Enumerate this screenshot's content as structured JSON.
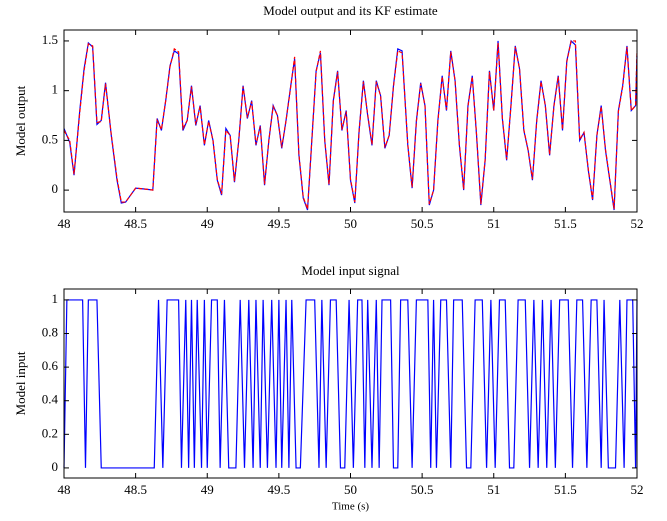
{
  "chart_data": [
    {
      "type": "line",
      "title": "Model output and its KF estimate",
      "y_label": "Model output",
      "x": [
        48,
        48.04,
        48.07,
        48.11,
        48.14,
        48.17,
        48.2,
        48.23,
        48.26,
        48.29,
        48.33,
        48.37,
        48.4,
        48.43,
        48.5,
        48.57,
        48.62,
        48.65,
        48.68,
        48.71,
        48.74,
        48.77,
        48.8,
        48.83,
        48.86,
        48.89,
        48.92,
        48.95,
        48.98,
        49.01,
        49.04,
        49.07,
        49.1,
        49.13,
        49.16,
        49.19,
        49.22,
        49.25,
        49.28,
        49.31,
        49.34,
        49.37,
        49.4,
        49.43,
        49.46,
        49.49,
        49.52,
        49.55,
        49.58,
        49.61,
        49.64,
        49.67,
        49.7,
        49.73,
        49.76,
        49.79,
        49.82,
        49.85,
        49.88,
        49.91,
        49.94,
        49.97,
        50,
        50.03,
        50.06,
        50.09,
        50.12,
        50.15,
        50.18,
        50.21,
        50.24,
        50.27,
        50.3,
        50.33,
        50.36,
        50.4,
        50.43,
        50.46,
        50.49,
        50.52,
        50.55,
        50.58,
        50.61,
        50.64,
        50.67,
        50.7,
        50.73,
        50.76,
        50.79,
        50.82,
        50.85,
        50.88,
        50.91,
        50.94,
        50.97,
        51,
        51.03,
        51.06,
        51.09,
        51.12,
        51.15,
        51.18,
        51.21,
        51.24,
        51.27,
        51.3,
        51.33,
        51.36,
        51.39,
        51.42,
        51.45,
        51.48,
        51.51,
        51.54,
        51.57,
        51.6,
        51.63,
        51.66,
        51.69,
        51.72,
        51.75,
        51.78,
        51.81,
        51.84,
        51.87,
        51.9,
        51.93,
        51.96,
        51.99,
        52
      ],
      "series": [
        {
          "color": "#0000ff",
          "linestyle": "solid",
          "values": [
            0.62,
            0.48,
            0.15,
            0.8,
            1.22,
            1.48,
            1.44,
            0.66,
            0.7,
            1.08,
            0.55,
            0.1,
            -0.13,
            -0.12,
            0.02,
            0.01,
            0,
            0.72,
            0.6,
            0.9,
            1.25,
            1.4,
            1.37,
            0.6,
            0.7,
            1.05,
            0.65,
            0.85,
            0.45,
            0.7,
            0.5,
            0.1,
            -0.05,
            0.62,
            0.55,
            0.08,
            0.5,
            1.05,
            0.72,
            0.9,
            0.45,
            0.65,
            0.05,
            0.5,
            0.85,
            0.75,
            0.42,
            0.7,
            1.02,
            1.32,
            0.35,
            -0.08,
            -0.2,
            0.5,
            1.2,
            1.38,
            0.5,
            0.05,
            0.9,
            1.2,
            0.6,
            0.8,
            0.1,
            -0.13,
            0.6,
            1.1,
            0.75,
            0.45,
            1.1,
            0.95,
            0.42,
            0.55,
            1.05,
            1.42,
            1.4,
            0.45,
            0.02,
            0.7,
            1.08,
            0.85,
            -0.15,
            0,
            0.7,
            1.15,
            0.8,
            1.4,
            1.1,
            0.45,
            0,
            0.85,
            1.15,
            0.55,
            -0.15,
            0.3,
            1.2,
            0.8,
            1.5,
            0.72,
            0.3,
            0.85,
            1.45,
            1.22,
            0.6,
            0.4,
            0.1,
            0.7,
            1.1,
            0.85,
            0.35,
            0.85,
            1.15,
            0.6,
            1.3,
            1.5,
            1.46,
            0.5,
            0.58,
            0.2,
            -0.1,
            0.55,
            0.85,
            0.4,
            0.1,
            -0.2,
            0.8,
            1.05,
            1.45,
            0.8,
            0.85,
            1.35
          ]
        },
        {
          "color": "#ff0000",
          "linestyle": "dashed",
          "values": [
            0.6,
            0.5,
            0.16,
            0.78,
            1.2,
            1.47,
            1.45,
            0.68,
            0.69,
            1.07,
            0.56,
            0.12,
            -0.12,
            -0.12,
            0.02,
            0.01,
            0,
            0.7,
            0.61,
            0.9,
            1.24,
            1.42,
            1.39,
            0.62,
            0.7,
            1.04,
            0.66,
            0.84,
            0.46,
            0.69,
            0.5,
            0.11,
            -0.04,
            0.6,
            0.55,
            0.09,
            0.5,
            1.04,
            0.73,
            0.89,
            0.46,
            0.64,
            0.06,
            0.5,
            0.84,
            0.75,
            0.43,
            0.7,
            1.01,
            1.34,
            0.36,
            -0.07,
            -0.19,
            0.5,
            1.19,
            1.4,
            0.51,
            0.06,
            0.89,
            1.19,
            0.61,
            0.79,
            0.11,
            -0.12,
            0.59,
            1.09,
            0.76,
            0.46,
            1.09,
            0.95,
            0.43,
            0.55,
            1.04,
            1.4,
            1.38,
            0.46,
            0.03,
            0.69,
            1.07,
            0.85,
            -0.14,
            0,
            0.69,
            1.14,
            0.81,
            1.39,
            1.1,
            0.46,
            0.01,
            0.84,
            1.14,
            0.56,
            -0.14,
            0.31,
            1.19,
            0.8,
            1.48,
            0.73,
            0.31,
            0.84,
            1.44,
            1.22,
            0.61,
            0.4,
            0.11,
            0.69,
            1.09,
            0.85,
            0.36,
            0.84,
            1.14,
            0.61,
            1.29,
            1.5,
            1.5,
            0.51,
            0.58,
            0.21,
            -0.09,
            0.55,
            0.84,
            0.41,
            0.11,
            -0.19,
            0.79,
            1.04,
            1.44,
            0.8,
            0.85,
            1.4
          ]
        }
      ],
      "xlim": [
        48,
        52
      ],
      "xticks": [
        48,
        48.5,
        49,
        49.5,
        50,
        50.5,
        51,
        51.5,
        52
      ],
      "ylim": [
        -0.22,
        1.61
      ],
      "yticks": [
        0,
        0.5,
        1,
        1.5
      ],
      "grid": false
    },
    {
      "type": "line",
      "title": "Model input signal",
      "y_label": "Model input",
      "x_label": "Time (s)",
      "x": [
        48,
        48.02,
        48.13,
        48.15,
        48.17,
        48.23,
        48.26,
        48.63,
        48.66,
        48.69,
        48.72,
        48.8,
        48.82,
        48.85,
        48.87,
        48.89,
        48.91,
        48.93,
        48.96,
        48.98,
        49,
        49.03,
        49.07,
        49.09,
        49.12,
        49.15,
        49.2,
        49.23,
        49.26,
        49.29,
        49.32,
        49.34,
        49.37,
        49.39,
        49.42,
        49.45,
        49.48,
        49.5,
        49.52,
        49.55,
        49.57,
        49.59,
        49.62,
        49.65,
        49.69,
        49.75,
        49.78,
        49.8,
        49.83,
        49.86,
        49.9,
        49.93,
        49.96,
        49.99,
        50.02,
        50.05,
        50.08,
        50.1,
        50.12,
        50.15,
        50.18,
        50.2,
        50.22,
        50.28,
        50.3,
        50.33,
        50.35,
        50.4,
        50.43,
        50.46,
        50.54,
        50.56,
        50.58,
        50.6,
        50.63,
        50.67,
        50.7,
        50.72,
        50.78,
        50.81,
        50.84,
        50.87,
        50.92,
        50.95,
        50.98,
        51.01,
        51.04,
        51.08,
        51.11,
        51.14,
        51.17,
        51.22,
        51.25,
        51.28,
        51.31,
        51.34,
        51.37,
        51.4,
        51.43,
        51.46,
        51.52,
        51.55,
        51.58,
        51.62,
        51.65,
        51.68,
        51.72,
        51.75,
        51.77,
        51.8,
        51.85,
        51.88,
        51.91,
        51.93,
        51.97,
        51.99,
        52
      ],
      "series": [
        {
          "color": "#0000ff",
          "linestyle": "solid",
          "values": [
            0,
            1,
            1,
            0,
            1,
            1,
            0,
            0,
            1,
            0,
            1,
            1,
            0,
            1,
            0,
            1,
            0,
            1,
            0,
            1,
            0,
            1,
            1,
            0,
            1,
            0,
            0,
            1,
            0,
            1,
            0,
            1,
            0,
            1,
            0,
            1,
            0,
            1,
            0,
            1,
            0,
            1,
            0,
            0,
            1,
            1,
            0,
            1,
            0,
            1,
            1,
            0,
            0,
            1,
            0,
            1,
            1,
            0,
            1,
            0,
            1,
            0,
            1,
            1,
            0,
            0,
            1,
            1,
            0,
            1,
            1,
            0,
            1,
            0,
            1,
            1,
            0,
            1,
            1,
            0,
            0,
            1,
            1,
            0,
            1,
            0,
            1,
            1,
            0,
            0,
            1,
            1,
            0,
            1,
            0,
            1,
            0,
            1,
            0,
            1,
            1,
            0,
            1,
            1,
            0,
            1,
            1,
            0,
            1,
            0,
            0,
            1,
            0,
            1,
            1,
            0,
            1
          ]
        }
      ],
      "xlim": [
        48,
        52
      ],
      "xticks": [
        48,
        48.5,
        49,
        49.5,
        50,
        50.5,
        51,
        51.5,
        52
      ],
      "ylim": [
        -0.06,
        1.065
      ],
      "yticks": [
        0,
        0.2,
        0.4,
        0.6,
        0.8,
        1
      ],
      "grid": false
    }
  ]
}
